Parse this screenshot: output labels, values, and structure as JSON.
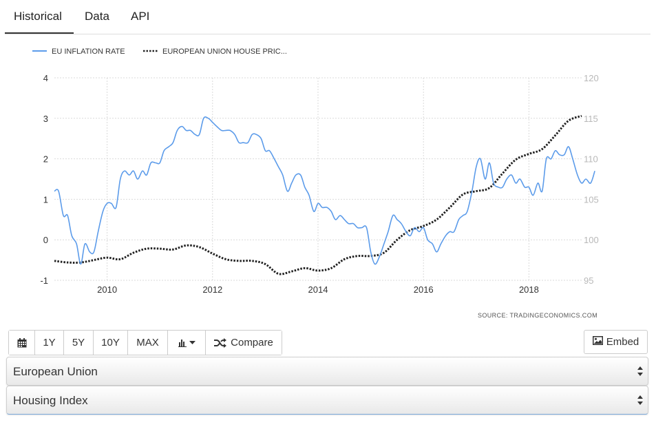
{
  "tabs": [
    {
      "label": "Historical",
      "active": true
    },
    {
      "label": "Data",
      "active": false
    },
    {
      "label": "API",
      "active": false
    }
  ],
  "colors": {
    "inflation": "#5b9bea",
    "house_price": "#222222",
    "grid": "#d9d9d9"
  },
  "chart_data": {
    "type": "line",
    "legend_position": "top-left",
    "grid": true,
    "source_text": "SOURCE:  TRADINGECONOMICS.COM",
    "xlim": [
      2009.0,
      2019.0
    ],
    "x_ticks": [
      2010,
      2012,
      2014,
      2016,
      2018
    ],
    "y_left": {
      "ticks": [
        -1,
        0,
        1,
        2,
        3,
        4
      ],
      "ylim": [
        -1,
        4
      ]
    },
    "y_right": {
      "ticks": [
        95,
        100,
        105,
        110,
        115,
        120
      ],
      "ylim": [
        95,
        120
      ]
    },
    "series": [
      {
        "name": "EU INFLATION RATE",
        "axis": "left",
        "style": "solid",
        "color": "#5b9bea",
        "points": [
          [
            2009.0,
            1.2
          ],
          [
            2009.08,
            1.2
          ],
          [
            2009.17,
            0.6
          ],
          [
            2009.25,
            0.6
          ],
          [
            2009.33,
            0.1
          ],
          [
            2009.42,
            -0.1
          ],
          [
            2009.5,
            -0.6
          ],
          [
            2009.58,
            -0.1
          ],
          [
            2009.67,
            -0.3
          ],
          [
            2009.75,
            -0.3
          ],
          [
            2009.83,
            0.2
          ],
          [
            2009.92,
            0.7
          ],
          [
            2010.0,
            0.9
          ],
          [
            2010.08,
            0.9
          ],
          [
            2010.17,
            0.8
          ],
          [
            2010.25,
            1.5
          ],
          [
            2010.33,
            1.7
          ],
          [
            2010.42,
            1.6
          ],
          [
            2010.5,
            1.7
          ],
          [
            2010.58,
            1.5
          ],
          [
            2010.67,
            1.7
          ],
          [
            2010.75,
            1.6
          ],
          [
            2010.83,
            1.9
          ],
          [
            2010.92,
            1.9
          ],
          [
            2011.0,
            1.9
          ],
          [
            2011.08,
            2.2
          ],
          [
            2011.17,
            2.3
          ],
          [
            2011.25,
            2.4
          ],
          [
            2011.33,
            2.7
          ],
          [
            2011.42,
            2.8
          ],
          [
            2011.5,
            2.7
          ],
          [
            2011.58,
            2.7
          ],
          [
            2011.67,
            2.6
          ],
          [
            2011.75,
            2.6
          ],
          [
            2011.83,
            3.0
          ],
          [
            2011.92,
            3.0
          ],
          [
            2012.0,
            2.9
          ],
          [
            2012.08,
            2.8
          ],
          [
            2012.17,
            2.7
          ],
          [
            2012.25,
            2.7
          ],
          [
            2012.33,
            2.7
          ],
          [
            2012.42,
            2.6
          ],
          [
            2012.5,
            2.4
          ],
          [
            2012.58,
            2.4
          ],
          [
            2012.67,
            2.4
          ],
          [
            2012.75,
            2.6
          ],
          [
            2012.83,
            2.6
          ],
          [
            2012.92,
            2.5
          ],
          [
            2013.0,
            2.2
          ],
          [
            2013.08,
            2.2
          ],
          [
            2013.17,
            2.0
          ],
          [
            2013.25,
            1.8
          ],
          [
            2013.33,
            1.6
          ],
          [
            2013.42,
            1.2
          ],
          [
            2013.5,
            1.4
          ],
          [
            2013.58,
            1.6
          ],
          [
            2013.67,
            1.6
          ],
          [
            2013.75,
            1.3
          ],
          [
            2013.83,
            1.1
          ],
          [
            2013.92,
            0.7
          ],
          [
            2014.0,
            0.9
          ],
          [
            2014.08,
            0.8
          ],
          [
            2014.17,
            0.8
          ],
          [
            2014.25,
            0.7
          ],
          [
            2014.33,
            0.5
          ],
          [
            2014.42,
            0.6
          ],
          [
            2014.5,
            0.5
          ],
          [
            2014.58,
            0.4
          ],
          [
            2014.67,
            0.4
          ],
          [
            2014.75,
            0.3
          ],
          [
            2014.83,
            0.3
          ],
          [
            2014.92,
            0.3
          ],
          [
            2015.0,
            -0.3
          ],
          [
            2015.08,
            -0.6
          ],
          [
            2015.17,
            -0.4
          ],
          [
            2015.25,
            -0.1
          ],
          [
            2015.33,
            0.2
          ],
          [
            2015.42,
            0.6
          ],
          [
            2015.5,
            0.5
          ],
          [
            2015.58,
            0.4
          ],
          [
            2015.67,
            0.2
          ],
          [
            2015.75,
            0.1
          ],
          [
            2015.83,
            0.3
          ],
          [
            2015.92,
            0.2
          ],
          [
            2016.0,
            0.3
          ],
          [
            2016.08,
            0.0
          ],
          [
            2016.17,
            -0.1
          ],
          [
            2016.25,
            -0.3
          ],
          [
            2016.33,
            -0.1
          ],
          [
            2016.42,
            0.1
          ],
          [
            2016.5,
            0.2
          ],
          [
            2016.58,
            0.2
          ],
          [
            2016.67,
            0.5
          ],
          [
            2016.75,
            0.6
          ],
          [
            2016.83,
            0.7
          ],
          [
            2016.92,
            1.2
          ],
          [
            2017.0,
            1.8
          ],
          [
            2017.08,
            2.0
          ],
          [
            2017.17,
            1.5
          ],
          [
            2017.25,
            1.9
          ],
          [
            2017.33,
            1.4
          ],
          [
            2017.42,
            1.3
          ],
          [
            2017.5,
            1.3
          ],
          [
            2017.58,
            1.5
          ],
          [
            2017.67,
            1.6
          ],
          [
            2017.75,
            1.4
          ],
          [
            2017.83,
            1.5
          ],
          [
            2017.92,
            1.3
          ],
          [
            2018.0,
            1.3
          ],
          [
            2018.08,
            1.1
          ],
          [
            2018.17,
            1.4
          ],
          [
            2018.25,
            1.2
          ],
          [
            2018.33,
            2.0
          ],
          [
            2018.42,
            2.0
          ],
          [
            2018.5,
            2.2
          ],
          [
            2018.58,
            2.1
          ],
          [
            2018.67,
            2.1
          ],
          [
            2018.75,
            2.3
          ],
          [
            2018.83,
            2.0
          ],
          [
            2018.92,
            1.6
          ],
          [
            2019.0,
            1.4
          ],
          [
            2019.08,
            1.5
          ],
          [
            2019.17,
            1.4
          ],
          [
            2019.25,
            1.7
          ]
        ]
      },
      {
        "name": "EUROPEAN UNION HOUSE PRIC...",
        "axis": "right",
        "style": "dotted",
        "color": "#222222",
        "points": [
          [
            2009.0,
            97.4
          ],
          [
            2009.25,
            97.2
          ],
          [
            2009.5,
            97.2
          ],
          [
            2009.75,
            97.5
          ],
          [
            2010.0,
            97.8
          ],
          [
            2010.25,
            97.6
          ],
          [
            2010.5,
            98.4
          ],
          [
            2010.75,
            98.9
          ],
          [
            2011.0,
            98.9
          ],
          [
            2011.25,
            98.8
          ],
          [
            2011.5,
            99.3
          ],
          [
            2011.75,
            99.1
          ],
          [
            2012.0,
            98.3
          ],
          [
            2012.25,
            97.6
          ],
          [
            2012.5,
            97.4
          ],
          [
            2012.75,
            97.4
          ],
          [
            2013.0,
            97.0
          ],
          [
            2013.25,
            95.8
          ],
          [
            2013.5,
            96.1
          ],
          [
            2013.75,
            96.5
          ],
          [
            2014.0,
            96.2
          ],
          [
            2014.25,
            96.5
          ],
          [
            2014.5,
            97.6
          ],
          [
            2014.75,
            98.0
          ],
          [
            2015.0,
            98.0
          ],
          [
            2015.25,
            98.4
          ],
          [
            2015.5,
            100.0
          ],
          [
            2015.75,
            101.2
          ],
          [
            2016.0,
            101.7
          ],
          [
            2016.25,
            102.5
          ],
          [
            2016.5,
            104.0
          ],
          [
            2016.75,
            105.6
          ],
          [
            2017.0,
            106.0
          ],
          [
            2017.25,
            106.4
          ],
          [
            2017.5,
            108.2
          ],
          [
            2017.75,
            109.9
          ],
          [
            2018.0,
            110.6
          ],
          [
            2018.25,
            111.2
          ],
          [
            2018.5,
            112.9
          ],
          [
            2018.75,
            114.7
          ],
          [
            2019.0,
            115.3
          ]
        ]
      }
    ]
  },
  "toolbar": {
    "calendar_icon": "calendar-icon",
    "range_1y": "1Y",
    "range_5y": "5Y",
    "range_10y": "10Y",
    "range_max": "MAX",
    "chart_type_icon": "bar-chart-icon",
    "compare_label": "Compare",
    "compare_icon": "shuffle-icon",
    "embed_label": "Embed",
    "embed_icon": "image-icon"
  },
  "selects": {
    "region": "European Union",
    "indicator": "Housing Index"
  }
}
